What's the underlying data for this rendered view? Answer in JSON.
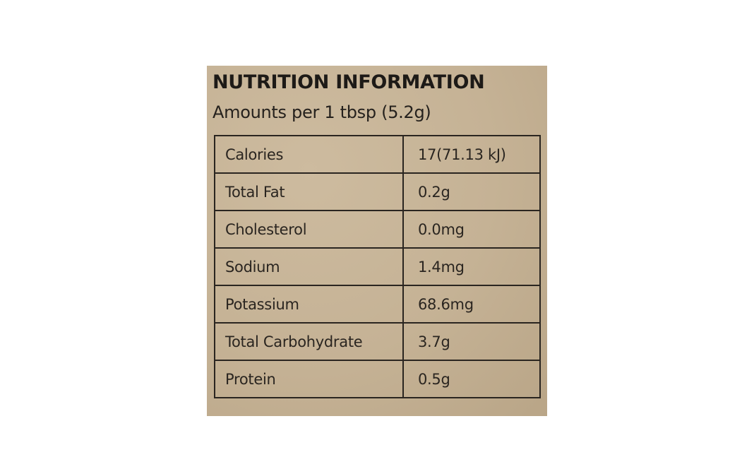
{
  "label": {
    "title": "NUTRITION INFORMATION",
    "serving": "Amounts per 1 tbsp (5.2g)",
    "rows": [
      {
        "name": "Calories",
        "value": "17(71.13 kJ)"
      },
      {
        "name": "Total Fat",
        "value": "0.2g"
      },
      {
        "name": "Cholesterol",
        "value": "0.0mg"
      },
      {
        "name": "Sodium",
        "value": "1.4mg"
      },
      {
        "name": "Potassium",
        "value": "68.6mg"
      },
      {
        "name": "Total Carbohydrate",
        "value": "3.7g"
      },
      {
        "name": "Protein",
        "value": "0.5g"
      }
    ],
    "colors": {
      "background": "#c8b69a",
      "ink": "#2a2520"
    }
  }
}
